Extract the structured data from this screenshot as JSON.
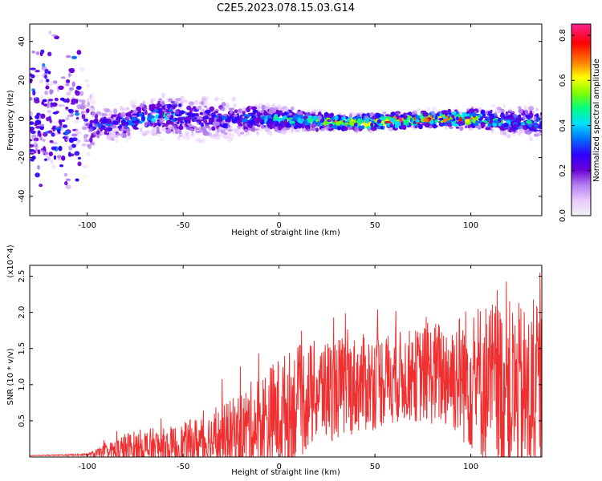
{
  "page": {
    "title": "C2E5.2023.078.15.03.G14"
  },
  "chart_data": [
    {
      "type": "heatmap",
      "xlabel": "Height of straight line (km)",
      "ylabel": "Frequency (Hz)",
      "xlim": [
        -130,
        137
      ],
      "ylim": [
        -50,
        49
      ],
      "x_ticks": [
        -100,
        -50,
        0,
        50,
        100
      ],
      "y_ticks": [
        -40,
        -20,
        0,
        20,
        40
      ],
      "colorbar": {
        "label": "Normalized spectral amplitude",
        "range": [
          0.0,
          0.85
        ],
        "ticks": [
          0.0,
          0.2,
          0.4,
          0.6,
          0.8
        ],
        "colormap": [
          "#f2f2f2",
          "#e9c9ff",
          "#b47ef0",
          "#6a00d8",
          "#3000ff",
          "#0070ff",
          "#00e0ff",
          "#00ff80",
          "#80ff00",
          "#ffff00",
          "#ff8000",
          "#ff0000",
          "#ff2090"
        ]
      },
      "ridge_profile": {
        "note_x": [
          -130,
          -105,
          -95,
          -80,
          -60,
          -40,
          -20,
          0,
          20,
          40,
          60,
          80,
          100,
          120,
          137
        ],
        "peak_frequency": [
          0,
          0,
          -4,
          -2,
          2,
          0,
          0,
          0,
          -1,
          -2,
          -1,
          0,
          0,
          -1,
          -2
        ],
        "band_halfwidth": [
          50,
          50,
          12,
          12,
          14,
          16,
          12,
          9,
          7,
          6,
          6,
          6,
          7,
          10,
          12
        ],
        "peak_amplitude": [
          0.15,
          0.2,
          0.35,
          0.4,
          0.45,
          0.35,
          0.4,
          0.5,
          0.6,
          0.7,
          0.85,
          0.8,
          0.7,
          0.5,
          0.4
        ]
      }
    },
    {
      "type": "line",
      "xlabel": "Height of straight line (km)",
      "ylabel": "SNR (10 * v/v)",
      "yscale_label": "(x10^4)",
      "xlim": [
        -130,
        137
      ],
      "ylim": [
        0,
        2.65
      ],
      "x_ticks": [
        -100,
        -50,
        0,
        50,
        100
      ],
      "y_ticks": [
        0.5,
        1.0,
        1.5,
        2.0,
        2.5
      ],
      "series": [
        {
          "color": "#f03030",
          "envelope_x": [
            -130,
            -100,
            -90,
            -80,
            -70,
            -60,
            -50,
            -40,
            -30,
            -20,
            -10,
            0,
            10,
            20,
            30,
            40,
            50,
            60,
            70,
            80,
            90,
            100,
            110,
            120,
            130,
            137
          ],
          "envelope_base": [
            0.02,
            0.03,
            0.06,
            0.1,
            0.12,
            0.12,
            0.15,
            0.2,
            0.25,
            0.35,
            0.45,
            0.6,
            0.75,
            0.9,
            0.95,
            1.0,
            1.05,
            1.1,
            1.12,
            1.15,
            1.15,
            1.1,
            1.0,
            0.9,
            0.8,
            0.85
          ],
          "envelope_amp": [
            0.0,
            0.02,
            0.15,
            0.3,
            0.35,
            0.35,
            0.4,
            0.5,
            0.55,
            0.7,
            0.9,
            1.0,
            1.0,
            0.9,
            0.9,
            0.85,
            0.85,
            0.8,
            0.8,
            0.9,
            1.0,
            1.3,
            1.5,
            1.6,
            1.6,
            1.6
          ]
        }
      ]
    }
  ]
}
